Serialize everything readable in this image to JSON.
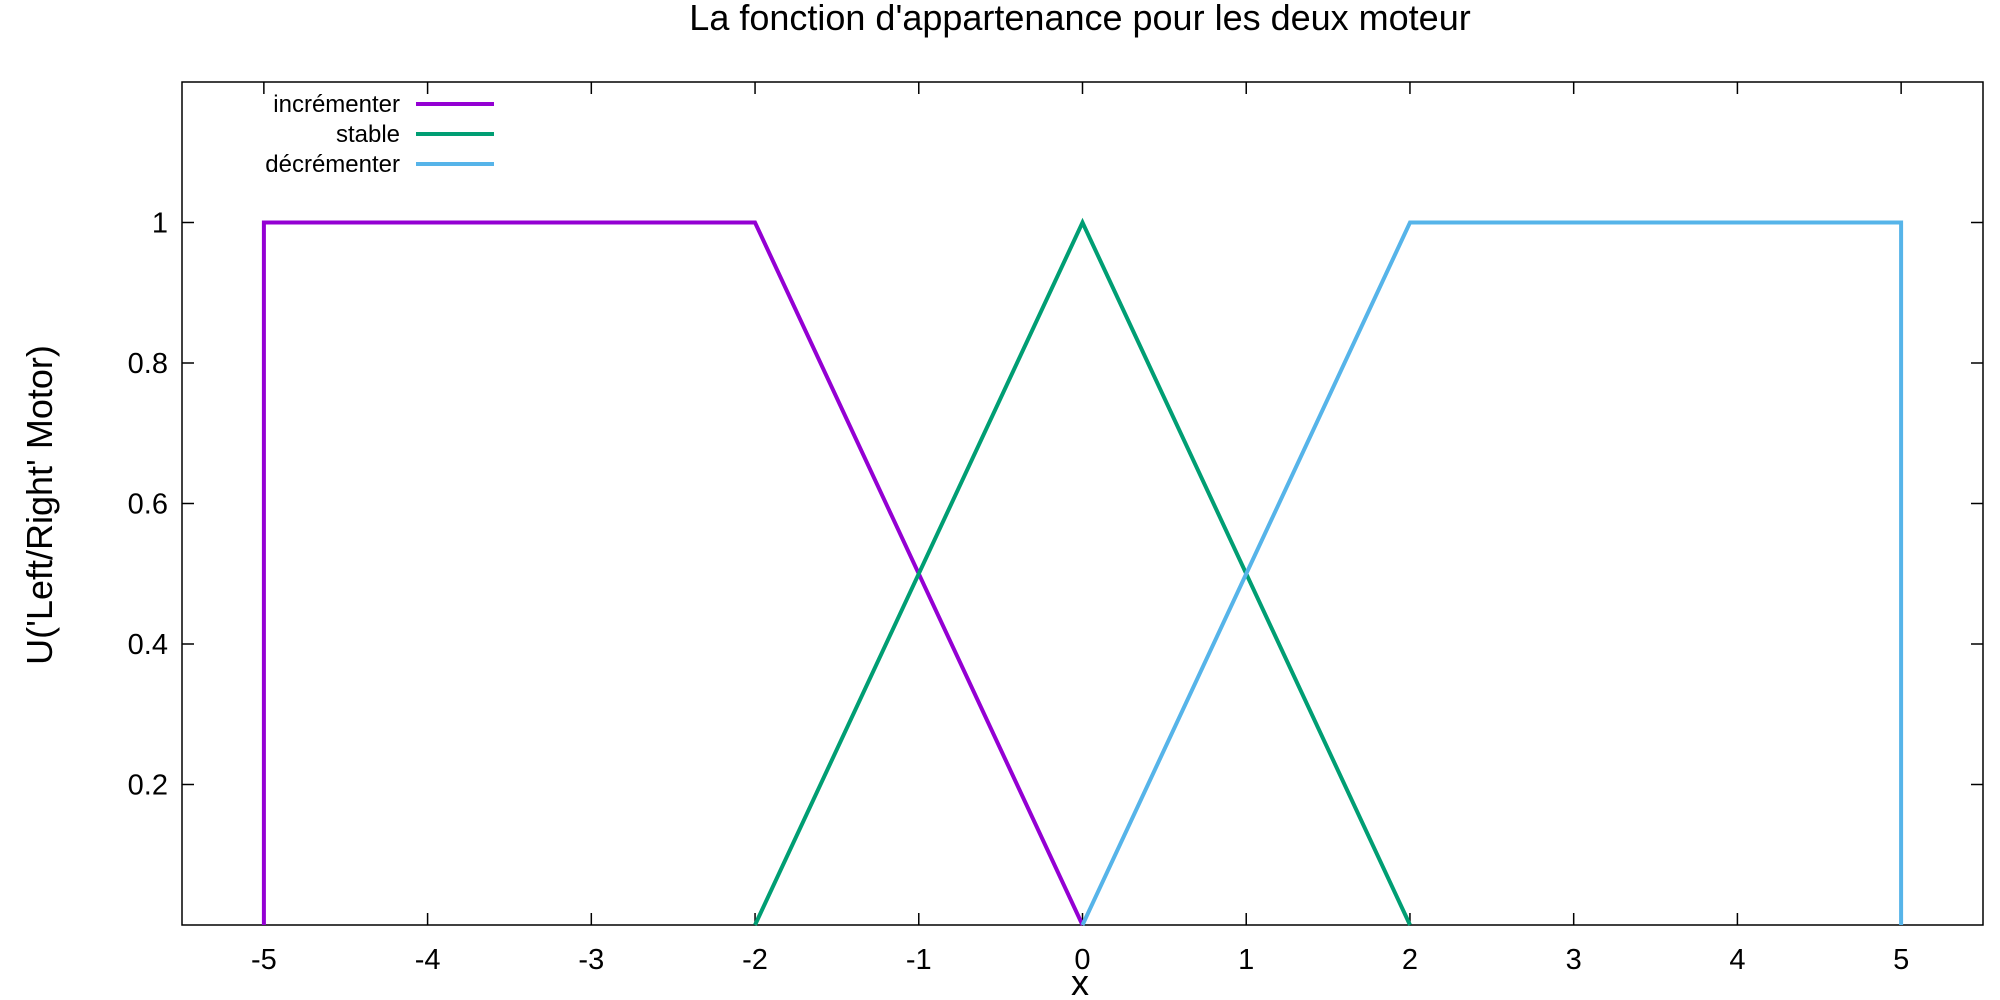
{
  "chart_data": {
    "type": "line",
    "title": "La fonction d'appartenance pour les deux moteur",
    "xlabel": "x",
    "ylabel": "U('Left/Right' Motor)",
    "xlim": [
      -5.5,
      5.5
    ],
    "ylim": [
      0,
      1.2
    ],
    "x_ticks": [
      -5,
      -4,
      -3,
      -2,
      -1,
      0,
      1,
      2,
      3,
      4,
      5
    ],
    "y_ticks": [
      0.2,
      0.4,
      0.6,
      0.8,
      1
    ],
    "grid": false,
    "legend_position": "top-left",
    "series": [
      {
        "name": "incrémenter",
        "color": "#9400d3",
        "x": [
          -5,
          -5,
          -2,
          0
        ],
        "y": [
          0,
          1,
          1,
          0
        ]
      },
      {
        "name": "stable",
        "color": "#009e73",
        "x": [
          -2,
          0,
          2
        ],
        "y": [
          0,
          1,
          0
        ]
      },
      {
        "name": "décrémenter",
        "color": "#56b4e9",
        "x": [
          0,
          2,
          5,
          5
        ],
        "y": [
          0,
          1,
          1,
          0
        ]
      }
    ]
  }
}
